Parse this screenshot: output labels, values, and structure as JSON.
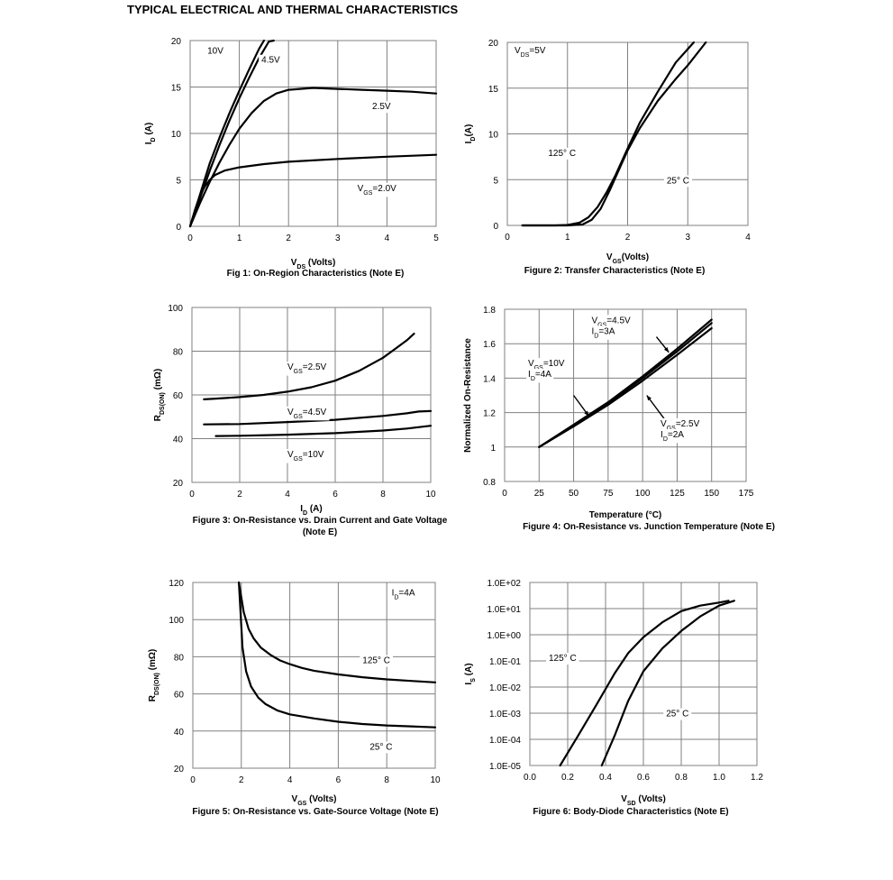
{
  "page": {
    "title": "TYPICAL ELECTRICAL AND THERMAL CHARACTERISTICS"
  },
  "chart_data": [
    {
      "id": "fig1",
      "type": "line",
      "caption": "Fig 1: On-Region Characteristics (Note E)",
      "xlabel": {
        "main": "V",
        "sub": "DS",
        "tail": " (Volts)"
      },
      "ylabel": {
        "main": "I",
        "sub": "D",
        "tail": " (A)"
      },
      "xlim": [
        0,
        5
      ],
      "ylim": [
        0,
        20
      ],
      "xticks": [
        0,
        1,
        2,
        3,
        4,
        5
      ],
      "yticks": [
        0,
        5,
        10,
        15,
        20
      ],
      "grid": true,
      "series": [
        {
          "name": "10V",
          "x": [
            0,
            0.2,
            0.4,
            0.6,
            0.8,
            1.0,
            1.2,
            1.4,
            1.5
          ],
          "y": [
            0,
            3.4,
            6.8,
            9.6,
            12.2,
            14.6,
            16.9,
            19.1,
            20
          ]
        },
        {
          "name": "4.5V",
          "x": [
            0,
            0.2,
            0.4,
            0.6,
            0.8,
            1.0,
            1.2,
            1.4,
            1.6,
            1.7
          ],
          "y": [
            0,
            3.0,
            6.0,
            8.8,
            11.4,
            13.8,
            16.0,
            18.1,
            19.9,
            20
          ]
        },
        {
          "name": "2.5V",
          "x": [
            0,
            0.2,
            0.4,
            0.6,
            0.8,
            1.0,
            1.25,
            1.5,
            1.75,
            2.0,
            2.5,
            3.0,
            3.5,
            4.0,
            4.5,
            5.0
          ],
          "y": [
            0,
            2.5,
            4.8,
            6.9,
            8.8,
            10.5,
            12.2,
            13.5,
            14.3,
            14.7,
            14.9,
            14.8,
            14.7,
            14.6,
            14.5,
            14.3
          ]
        },
        {
          "name": "V_GS=2.0V",
          "x": [
            0,
            0.1,
            0.2,
            0.3,
            0.4,
            0.5,
            0.7,
            1.0,
            1.5,
            2.0,
            3.0,
            4.0,
            5.0
          ],
          "y": [
            0,
            1.8,
            3.3,
            4.3,
            5.0,
            5.5,
            6.0,
            6.35,
            6.7,
            6.95,
            7.25,
            7.5,
            7.7
          ]
        }
      ],
      "labels": [
        {
          "text": "10V",
          "x": 0.35,
          "y": 18.6
        },
        {
          "text": "4.5V",
          "x": 1.45,
          "y": 17.6
        },
        {
          "text": "2.5V",
          "x": 3.7,
          "y": 12.6
        },
        {
          "main": "V",
          "sub": "GS",
          "tail": "=2.0V",
          "x": 3.4,
          "y": 3.8
        }
      ]
    },
    {
      "id": "fig2",
      "type": "line",
      "caption": "Figure 2: Transfer Characteristics (Note E)",
      "xlabel": {
        "main": "V",
        "sub": "GS",
        "tail": "(Volts)"
      },
      "ylabel": {
        "main": "I",
        "sub": "D",
        "tail": "(A)"
      },
      "xlim": [
        0,
        4
      ],
      "ylim": [
        0,
        20
      ],
      "xticks": [
        0,
        1,
        2,
        3,
        4
      ],
      "yticks": [
        0,
        5,
        10,
        15,
        20
      ],
      "grid": true,
      "series": [
        {
          "name": "125° C",
          "x": [
            0.25,
            0.8,
            1.0,
            1.2,
            1.35,
            1.5,
            1.65,
            1.8,
            2.0,
            2.2,
            2.5,
            2.8,
            3.1
          ],
          "y": [
            0,
            0,
            0.05,
            0.3,
            0.9,
            2.0,
            3.6,
            5.5,
            8.4,
            11.2,
            14.6,
            17.8,
            20
          ]
        },
        {
          "name": "25° C",
          "x": [
            0.25,
            1.0,
            1.25,
            1.4,
            1.55,
            1.7,
            1.85,
            2.0,
            2.2,
            2.5,
            2.8,
            3.0,
            3.3
          ],
          "y": [
            0,
            0,
            0.1,
            0.6,
            1.8,
            3.8,
            6.0,
            8.2,
            10.6,
            13.6,
            16.0,
            17.5,
            20
          ]
        }
      ],
      "labels": [
        {
          "main": "V",
          "sub": "DS",
          "tail": "=5V",
          "x": 0.12,
          "y": 18.8
        },
        {
          "text": "125° C",
          "x": 0.68,
          "y": 7.6
        },
        {
          "text": "25° C",
          "x": 2.65,
          "y": 4.6
        }
      ]
    },
    {
      "id": "fig3",
      "type": "line",
      "caption": "Figure 3: On-Resistance vs. Drain Current and Gate Voltage (Note E)",
      "xlabel": {
        "main": "I",
        "sub": "D",
        "tail": " (A)"
      },
      "ylabel": {
        "main": "R",
        "sub": "DS(ON)",
        "tail": " (mΩ)"
      },
      "xlim": [
        0,
        10
      ],
      "ylim": [
        20,
        100
      ],
      "xticks": [
        0,
        2,
        4,
        6,
        8,
        10
      ],
      "yticks": [
        20,
        40,
        60,
        80,
        100
      ],
      "grid": true,
      "series": [
        {
          "name": "V_GS=2.5V",
          "x": [
            0.5,
            1,
            2,
            3,
            4,
            5,
            6,
            7,
            8,
            8.5,
            9,
            9.3
          ],
          "y": [
            58,
            58.3,
            59,
            60,
            61.5,
            63.5,
            66.5,
            71,
            77,
            81,
            85,
            88
          ]
        },
        {
          "name": "V_GS=4.5V",
          "x": [
            0.5,
            2,
            4,
            6,
            8,
            9,
            9.5,
            10
          ],
          "y": [
            46.5,
            46.7,
            47.6,
            48.6,
            50.4,
            51.6,
            52.4,
            52.6
          ]
        },
        {
          "name": "V_GS=10V",
          "x": [
            1,
            2,
            4,
            6,
            8,
            9,
            10
          ],
          "y": [
            41.2,
            41.3,
            41.8,
            42.5,
            43.7,
            44.6,
            45.9
          ]
        }
      ],
      "labels": [
        {
          "main": "V",
          "sub": "GS",
          "tail": "=2.5V",
          "x": 4.0,
          "y": 71.5
        },
        {
          "main": "V",
          "sub": "GS",
          "tail": "=4.5V",
          "x": 4.0,
          "y": 51.0
        },
        {
          "main": "V",
          "sub": "GS",
          "tail": "=10V",
          "x": 4.0,
          "y": 31.5
        }
      ]
    },
    {
      "id": "fig4",
      "type": "line",
      "caption": "Figure 4: On-Resistance vs. Junction Temperature (Note E)",
      "xlabel": {
        "main": "Temperature (°C)",
        "sub": "",
        "tail": ""
      },
      "ylabel": {
        "main": "Normalized On-Resistance",
        "sub": "",
        "tail": ""
      },
      "xlim": [
        0,
        175
      ],
      "ylim": [
        0.8,
        1.8
      ],
      "xticks": [
        0,
        25,
        50,
        75,
        100,
        125,
        150,
        175
      ],
      "yticks": [
        0.8,
        1,
        1.2,
        1.4,
        1.6,
        1.8
      ],
      "ytick_labels": [
        "0.8",
        "1",
        "1.2",
        "1.4",
        "1.6",
        "1.8"
      ],
      "grid": true,
      "series": [
        {
          "name": "V_GS=4.5V I_D=3A",
          "x": [
            25,
            50,
            75,
            100,
            125,
            150
          ],
          "y": [
            1.0,
            1.13,
            1.26,
            1.41,
            1.57,
            1.74
          ]
        },
        {
          "name": "V_GS=10V I_D=4A",
          "x": [
            25,
            50,
            75,
            100,
            125,
            150
          ],
          "y": [
            1.0,
            1.125,
            1.255,
            1.4,
            1.555,
            1.72
          ]
        },
        {
          "name": "V_GS=2.5V I_D=2A",
          "x": [
            25,
            50,
            75,
            100,
            125,
            150
          ],
          "y": [
            1.0,
            1.12,
            1.245,
            1.385,
            1.535,
            1.69
          ]
        }
      ],
      "labels": [
        {
          "lines": [
            {
              "main": "V",
              "sub": "GS",
              "tail": "=4.5V"
            },
            {
              "main": "I",
              "sub": "D",
              "tail": "=3A"
            }
          ],
          "x": 63,
          "y": 1.72
        },
        {
          "lines": [
            {
              "main": "V",
              "sub": "GS",
              "tail": "=10V"
            },
            {
              "main": "I",
              "sub": "D",
              "tail": "=4A"
            }
          ],
          "x": 17,
          "y": 1.47
        },
        {
          "lines": [
            {
              "main": "V",
              "sub": "GS",
              "tail": "=2.5V"
            },
            {
              "main": "I",
              "sub": "D",
              "tail": "=2A"
            }
          ],
          "x": 113,
          "y": 1.12
        }
      ],
      "arrows": [
        {
          "from": [
            110,
            1.64
          ],
          "to": [
            119,
            1.55
          ]
        },
        {
          "from": [
            50,
            1.3
          ],
          "to": [
            61,
            1.18
          ]
        },
        {
          "from": [
            117,
            1.15
          ],
          "to": [
            103,
            1.3
          ]
        }
      ]
    },
    {
      "id": "fig5",
      "type": "line",
      "caption": "Figure 5: On-Resistance vs. Gate-Source Voltage (Note E)",
      "xlabel": {
        "main": "V",
        "sub": "GS",
        "tail": " (Volts)"
      },
      "ylabel": {
        "main": "R",
        "sub": "DS(ON)",
        "tail": " (mΩ)"
      },
      "xlim": [
        0,
        10
      ],
      "ylim": [
        20,
        120
      ],
      "xticks": [
        0,
        2,
        4,
        6,
        8,
        10
      ],
      "yticks": [
        20,
        40,
        60,
        80,
        100,
        120
      ],
      "grid": true,
      "series": [
        {
          "name": "125° C",
          "x": [
            1.9,
            2.1,
            2.3,
            2.5,
            2.8,
            3.2,
            3.6,
            4.0,
            4.5,
            5.0,
            6.0,
            7.0,
            8.0,
            9.0,
            10.0
          ],
          "y": [
            120,
            104,
            95,
            90,
            85,
            81,
            78,
            76,
            74,
            72.5,
            70.5,
            69,
            67.8,
            67,
            66.2
          ]
        },
        {
          "name": "25° C",
          "x": [
            1.9,
            2.05,
            2.2,
            2.4,
            2.7,
            3.0,
            3.5,
            4.0,
            5.0,
            6.0,
            7.0,
            8.0,
            9.0,
            10.0
          ],
          "y": [
            120,
            85,
            72,
            64,
            58,
            54.5,
            51,
            49,
            46.8,
            45,
            43.8,
            43,
            42.5,
            42
          ]
        }
      ],
      "labels": [
        {
          "main": "I",
          "sub": "D",
          "tail": "=4A",
          "x": 8.2,
          "y": 113
        },
        {
          "text": "125° C",
          "x": 7.0,
          "y": 76.5
        },
        {
          "text": "25° C",
          "x": 7.3,
          "y": 30
        }
      ]
    },
    {
      "id": "fig6",
      "type": "line",
      "caption": "Figure 6: Body-Diode Characteristics (Note E)",
      "xlabel": {
        "main": "V",
        "sub": "SD",
        "tail": " (Volts)"
      },
      "ylabel": {
        "main": "I",
        "sub": "S",
        "tail": " (A)"
      },
      "xlim": [
        0,
        1.2
      ],
      "ylim": [
        1e-05,
        100
      ],
      "yscale": "log",
      "xticks": [
        0,
        0.2,
        0.4,
        0.6,
        0.8,
        1.0,
        1.2
      ],
      "xtick_labels": [
        "0.0",
        "0.2",
        "0.4",
        "0.6",
        "0.8",
        "1.0",
        "1.2"
      ],
      "yticks": [
        1e-05,
        0.0001,
        0.001,
        0.01,
        0.1,
        1,
        10,
        100
      ],
      "ytick_labels": [
        "1.0E-05",
        "1.0E-04",
        "1.0E-03",
        "1.0E-02",
        "1.0E-01",
        "1.0E+00",
        "1.0E+01",
        "1.0E+02"
      ],
      "grid": true,
      "series": [
        {
          "name": "125° C",
          "x": [
            0.16,
            0.25,
            0.35,
            0.45,
            0.52,
            0.6,
            0.7,
            0.8,
            0.9,
            1.0,
            1.05
          ],
          "y": [
            1e-05,
            0.00012,
            0.002,
            0.035,
            0.2,
            0.8,
            3,
            8,
            13,
            17,
            20
          ]
        },
        {
          "name": "25° C",
          "x": [
            0.38,
            0.45,
            0.52,
            0.6,
            0.7,
            0.8,
            0.9,
            1.0,
            1.08
          ],
          "y": [
            1e-05,
            0.00015,
            0.003,
            0.04,
            0.3,
            1.4,
            5,
            13,
            20
          ]
        }
      ],
      "labels": [
        {
          "text": "125° C",
          "x": 0.1,
          "y": 0.1
        },
        {
          "text": "25° C",
          "x": 0.72,
          "y": 0.00075
        }
      ]
    }
  ]
}
